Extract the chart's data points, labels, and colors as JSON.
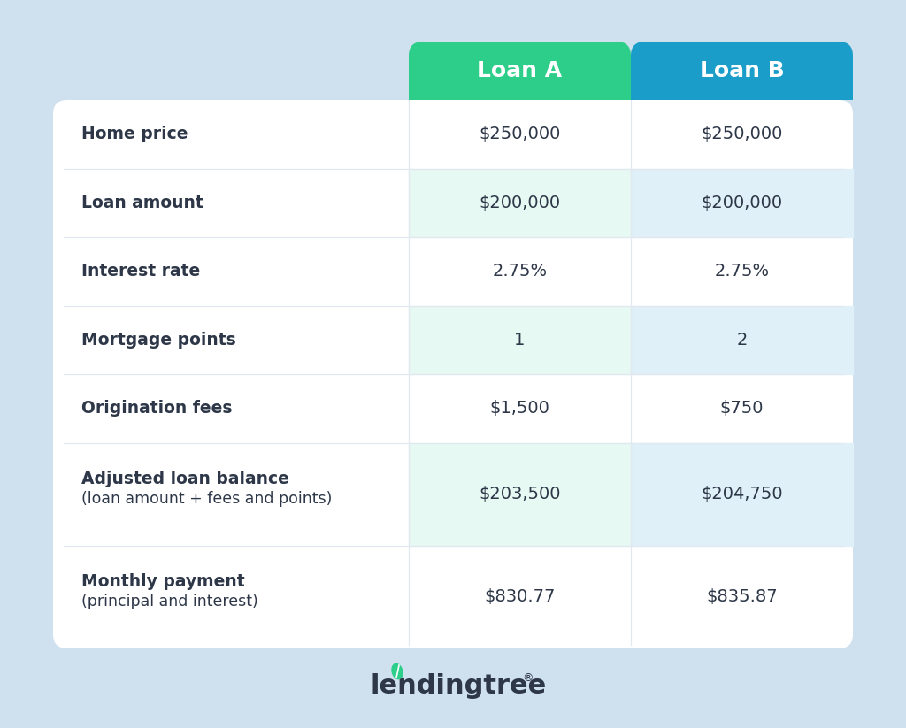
{
  "bg_color": "#cfe0ef",
  "table_bg": "#ffffff",
  "header_loan_a_color": "#2dce89",
  "header_loan_b_color": "#1a9ec9",
  "header_text_color": "#ffffff",
  "row_highlight_a_color": "#e6f9f2",
  "row_highlight_b_color": "#dff0f8",
  "row_normal_color": "#ffffff",
  "label_text_color": "#2d3748",
  "value_text_color": "#2d3748",
  "divider_color": "#e2e8f0",
  "rows": [
    {
      "label": "Home price",
      "label2": "",
      "loan_a": "$250,000",
      "loan_b": "$250,000",
      "highlight": false
    },
    {
      "label": "Loan amount",
      "label2": "",
      "loan_a": "$200,000",
      "loan_b": "$200,000",
      "highlight": true
    },
    {
      "label": "Interest rate",
      "label2": "",
      "loan_a": "2.75%",
      "loan_b": "2.75%",
      "highlight": false
    },
    {
      "label": "Mortgage points",
      "label2": "",
      "loan_a": "1",
      "loan_b": "2",
      "highlight": true
    },
    {
      "label": "Origination fees",
      "label2": "",
      "loan_a": "$1,500",
      "loan_b": "$750",
      "highlight": false
    },
    {
      "label": "Adjusted loan balance",
      "label2": "(loan amount + fees and points)",
      "loan_a": "$203,500",
      "loan_b": "$204,750",
      "highlight": true
    },
    {
      "label": "Monthly payment",
      "label2": "(principal and interest)",
      "loan_a": "$830.77",
      "loan_b": "$835.87",
      "highlight": false
    }
  ],
  "col_a_label": "Loan A",
  "col_b_label": "Loan B",
  "logo_text": "lendingtree",
  "logo_color": "#2d3748",
  "leaf_color": "#2dce89",
  "leaf_inner_color": "#1a9e69"
}
